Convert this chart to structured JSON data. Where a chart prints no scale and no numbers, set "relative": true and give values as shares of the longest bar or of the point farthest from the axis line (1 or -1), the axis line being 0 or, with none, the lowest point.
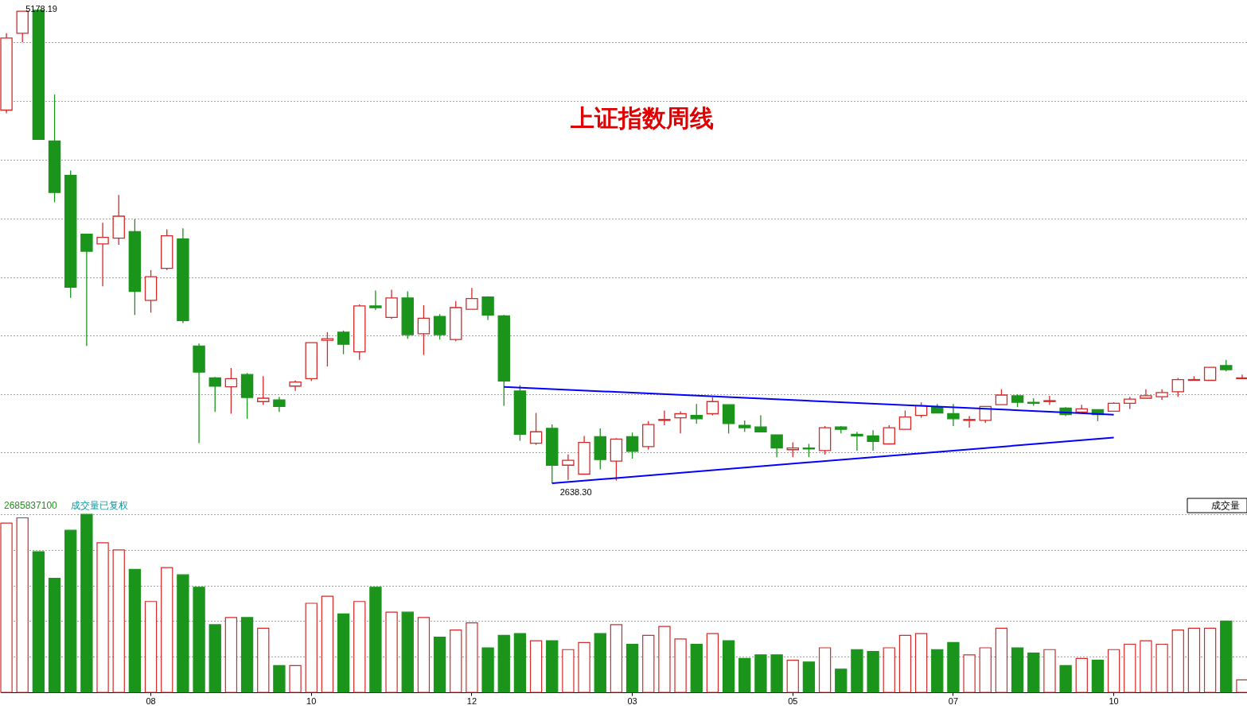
{
  "chart_data": [
    {
      "type": "candlestick",
      "title": "上证指数周线",
      "categories": [
        null,
        null,
        null,
        null,
        null,
        null,
        null,
        null,
        null,
        "08",
        null,
        null,
        null,
        null,
        null,
        null,
        null,
        null,
        null,
        "10",
        null,
        null,
        null,
        null,
        null,
        null,
        null,
        null,
        null,
        "12",
        null,
        null,
        null,
        null,
        null,
        null,
        null,
        null,
        null,
        "03",
        null,
        null,
        null,
        null,
        null,
        null,
        null,
        null,
        null,
        "05",
        null,
        null,
        null,
        null,
        null,
        null,
        null,
        null,
        null,
        "07",
        null,
        null,
        null,
        null,
        null,
        null,
        null,
        null,
        null,
        "10",
        null,
        null,
        null,
        null,
        null,
        null,
        null,
        null
      ],
      "ohlc": [
        [
          4639,
          5051,
          4622,
          5025
        ],
        [
          5051,
          5169,
          5003,
          5169
        ],
        [
          5174,
          5178.19,
          4482,
          4482
        ],
        [
          4473,
          4723,
          4145,
          4197
        ],
        [
          4289,
          4315,
          3632,
          3689
        ],
        [
          3974,
          3974,
          3374,
          3882
        ],
        [
          3921,
          4035,
          3694,
          3957
        ],
        [
          3952,
          4184,
          3917,
          4070
        ],
        [
          3987,
          4053,
          3540,
          3667
        ],
        [
          3619,
          3781,
          3553,
          3746
        ],
        [
          3790,
          4000,
          3781,
          3965
        ],
        [
          3948,
          4005,
          3497,
          3510
        ],
        [
          3374,
          3387,
          2853,
          3234
        ],
        [
          3203,
          3208,
          3020,
          3159
        ],
        [
          3155,
          3256,
          3011,
          3199
        ],
        [
          3221,
          3229,
          2984,
          3098
        ],
        [
          3076,
          3212,
          3059,
          3094
        ],
        [
          3085,
          3102,
          3020,
          3050
        ],
        [
          3159,
          3190,
          3133,
          3181
        ],
        [
          3199,
          3392,
          3186,
          3392
        ],
        [
          3405,
          3448,
          3264,
          3413
        ],
        [
          3448,
          3457,
          3330,
          3383
        ],
        [
          3343,
          3597,
          3300,
          3589
        ],
        [
          3589,
          3672,
          3567,
          3580
        ],
        [
          3527,
          3676,
          3519,
          3632
        ],
        [
          3632,
          3667,
          3413,
          3435
        ],
        [
          3440,
          3593,
          3326,
          3523
        ],
        [
          3532,
          3545,
          3409,
          3435
        ],
        [
          3409,
          3615,
          3400,
          3580
        ],
        [
          3571,
          3685,
          3571,
          3628
        ],
        [
          3637,
          3641,
          3514,
          3540
        ],
        [
          3536,
          3540,
          3054,
          3186
        ],
        [
          3133,
          3164,
          2866,
          2901
        ],
        [
          2853,
          3015,
          2844,
          2914
        ],
        [
          2932,
          2953,
          2638.3,
          2735
        ],
        [
          2735,
          2792,
          2656,
          2761
        ],
        [
          2687,
          2892,
          2687,
          2857
        ],
        [
          2888,
          2932,
          2713,
          2765
        ],
        [
          2757,
          2879,
          2652,
          2875
        ],
        [
          2888,
          2910,
          2770,
          2809
        ],
        [
          2835,
          2971,
          2818,
          2953
        ],
        [
          2975,
          3028,
          2949,
          2980
        ],
        [
          2989,
          3024,
          2905,
          3011
        ],
        [
          3002,
          3063,
          2958,
          2984
        ],
        [
          3011,
          3098,
          3002,
          3076
        ],
        [
          3059,
          3059,
          2905,
          2958
        ],
        [
          2949,
          2975,
          2914,
          2936
        ],
        [
          2940,
          3002,
          2914,
          2914
        ],
        [
          2897,
          2897,
          2778,
          2827
        ],
        [
          2818,
          2857,
          2778,
          2827
        ],
        [
          2827,
          2849,
          2778,
          2822
        ],
        [
          2813,
          2945,
          2792,
          2936
        ],
        [
          2940,
          2945,
          2905,
          2927
        ],
        [
          2901,
          2914,
          2813,
          2892
        ],
        [
          2892,
          2923,
          2813,
          2862
        ],
        [
          2849,
          2949,
          2849,
          2936
        ],
        [
          2927,
          3028,
          2927,
          2993
        ],
        [
          3002,
          3072,
          2989,
          3054
        ],
        [
          3046,
          3063,
          3015,
          3015
        ],
        [
          3011,
          3063,
          2945,
          2984
        ],
        [
          2975,
          2998,
          2936,
          2980
        ],
        [
          2975,
          3050,
          2962,
          3050
        ],
        [
          3059,
          3142,
          3059,
          3111
        ],
        [
          3107,
          3116,
          3046,
          3072
        ],
        [
          3072,
          3094,
          3054,
          3067
        ],
        [
          3076,
          3107,
          3059,
          3081
        ],
        [
          3041,
          3046,
          2998,
          3006
        ],
        [
          3020,
          3059,
          3015,
          3037
        ],
        [
          3033,
          3033,
          2971,
          3006
        ],
        [
          3024,
          3072,
          3024,
          3067
        ],
        [
          3067,
          3102,
          3037,
          3089
        ],
        [
          3094,
          3142,
          3094,
          3107
        ],
        [
          3102,
          3142,
          3085,
          3124
        ],
        [
          3129,
          3203,
          3102,
          3194
        ],
        [
          3190,
          3212,
          3190,
          3194
        ],
        [
          3190,
          3260,
          3190,
          3260
        ],
        [
          3269,
          3300,
          3238,
          3247
        ],
        [
          3199,
          3221,
          3199,
          3203
        ]
      ],
      "colors": [
        "#d42a2a",
        "#d42a2a",
        "#1b941b",
        "#1b941b",
        "#1b941b",
        "#1b941b",
        "#d42a2a",
        "#d42a2a",
        "#1b941b",
        "#d42a2a",
        "#d42a2a",
        "#1b941b",
        "#1b941b",
        "#1b941b",
        "#d42a2a",
        "#1b941b",
        "#d42a2a",
        "#1b941b",
        "#d42a2a",
        "#d42a2a",
        "#d42a2a",
        "#1b941b",
        "#d42a2a",
        "#1b941b",
        "#d42a2a",
        "#1b941b",
        "#d42a2a",
        "#1b941b",
        "#d42a2a",
        "#d42a2a",
        "#1b941b",
        "#1b941b",
        "#1b941b",
        "#d42a2a",
        "#1b941b",
        "#d42a2a",
        "#d42a2a",
        "#1b941b",
        "#d42a2a",
        "#1b941b",
        "#d42a2a",
        "#d42a2a",
        "#d42a2a",
        "#1b941b",
        "#d42a2a",
        "#1b941b",
        "#1b941b",
        "#1b941b",
        "#1b941b",
        "#d42a2a",
        "#1b941b",
        "#d42a2a",
        "#1b941b",
        "#1b941b",
        "#1b941b",
        "#d42a2a",
        "#d42a2a",
        "#d42a2a",
        "#1b941b",
        "#1b941b",
        "#d42a2a",
        "#d42a2a",
        "#d42a2a",
        "#1b941b",
        "#1b941b",
        "#d42a2a",
        "#1b941b",
        "#d42a2a",
        "#1b941b",
        "#d42a2a",
        "#d42a2a",
        "#d42a2a",
        "#d42a2a",
        "#d42a2a",
        "#d42a2a",
        "#d42a2a",
        "#1b941b",
        "#d42a2a"
      ],
      "yticks": [
        {
          "value": 2804,
          "label": null
        },
        {
          "value": 3116,
          "label": null
        },
        {
          "value": 3431,
          "label": null
        },
        {
          "value": 3742,
          "label": null
        },
        {
          "value": 4057,
          "label": null
        },
        {
          "value": 4372,
          "label": null
        },
        {
          "value": 4688,
          "label": null
        },
        {
          "value": 5003,
          "label": null
        }
      ],
      "grid": "y",
      "tick_labels": false,
      "annotations": [
        "5178.19",
        {
          "text": "2638.30",
          "y": 2638.3
        }
      ],
      "series": [
        {
          "type": "line",
          "color": "#0000ff",
          "values": [
            null,
            null,
            null,
            null,
            null,
            null,
            null,
            null,
            null,
            null,
            null,
            null,
            null,
            null,
            null,
            null,
            null,
            null,
            null,
            null,
            null,
            null,
            null,
            null,
            null,
            null,
            null,
            null,
            null,
            null,
            null,
            3155,
            null,
            null,
            null,
            null,
            null,
            null,
            null,
            null,
            null,
            null,
            null,
            null,
            null,
            null,
            null,
            null,
            null,
            null,
            null,
            null,
            null,
            null,
            null,
            null,
            null,
            null,
            null,
            null,
            null,
            null,
            null,
            null,
            null,
            null,
            null,
            null,
            null,
            3006,
            null,
            null,
            null,
            null,
            null,
            null,
            null,
            null
          ]
        },
        {
          "type": "line",
          "color": "#0000ff",
          "values": [
            null,
            null,
            null,
            null,
            null,
            null,
            null,
            null,
            null,
            null,
            null,
            null,
            null,
            null,
            null,
            null,
            null,
            null,
            null,
            null,
            null,
            null,
            null,
            null,
            null,
            null,
            null,
            null,
            null,
            null,
            null,
            null,
            null,
            null,
            2638,
            null,
            null,
            null,
            null,
            null,
            null,
            null,
            null,
            null,
            null,
            null,
            null,
            null,
            null,
            null,
            null,
            null,
            null,
            null,
            null,
            null,
            null,
            null,
            null,
            null,
            null,
            null,
            null,
            null,
            null,
            null,
            null,
            null,
            null,
            2883,
            null,
            null,
            null,
            null,
            null,
            null,
            null,
            null
          ]
        }
      ]
    },
    {
      "type": "bar",
      "relative": true,
      "grid": "y",
      "tick_labels": "x",
      "categories": [
        null,
        null,
        null,
        null,
        null,
        null,
        null,
        null,
        null,
        "08",
        null,
        null,
        null,
        null,
        null,
        null,
        null,
        null,
        null,
        "10",
        null,
        null,
        null,
        null,
        null,
        null,
        null,
        null,
        null,
        "12",
        null,
        null,
        null,
        null,
        null,
        null,
        null,
        null,
        null,
        "03",
        null,
        null,
        null,
        null,
        null,
        null,
        null,
        null,
        null,
        "05",
        null,
        null,
        null,
        null,
        null,
        null,
        null,
        null,
        null,
        "07",
        null,
        null,
        null,
        null,
        null,
        null,
        null,
        null,
        null,
        "10",
        null,
        null,
        null,
        null,
        null,
        null,
        null,
        null
      ],
      "values": [
        0.95,
        0.98,
        0.79,
        0.64,
        0.91,
        1,
        0.84,
        0.8,
        0.69,
        0.51,
        0.7,
        0.66,
        0.59,
        0.38,
        0.42,
        0.42,
        0.36,
        0.15,
        0.15,
        0.5,
        0.54,
        0.44,
        0.51,
        0.59,
        0.45,
        0.45,
        0.42,
        0.31,
        0.35,
        0.39,
        0.25,
        0.32,
        0.33,
        0.29,
        0.29,
        0.24,
        0.28,
        0.33,
        0.38,
        0.27,
        0.32,
        0.37,
        0.3,
        0.27,
        0.33,
        0.29,
        0.19,
        0.21,
        0.21,
        0.18,
        0.17,
        0.25,
        0.13,
        0.24,
        0.23,
        0.25,
        0.32,
        0.33,
        0.24,
        0.28,
        0.21,
        0.25,
        0.36,
        0.25,
        0.22,
        0.24,
        0.15,
        0.19,
        0.18,
        0.24,
        0.27,
        0.29,
        0.27,
        0.35,
        0.36,
        0.36,
        0.4,
        0.07
      ],
      "colors": [
        "#d42a2a",
        "#d42a2a",
        "#1b941b",
        "#1b941b",
        "#1b941b",
        "#1b941b",
        "#d42a2a",
        "#d42a2a",
        "#1b941b",
        "#d42a2a",
        "#d42a2a",
        "#1b941b",
        "#1b941b",
        "#1b941b",
        "#d42a2a",
        "#1b941b",
        "#d42a2a",
        "#1b941b",
        "#d42a2a",
        "#d42a2a",
        "#d42a2a",
        "#1b941b",
        "#d42a2a",
        "#1b941b",
        "#d42a2a",
        "#1b941b",
        "#d42a2a",
        "#1b941b",
        "#d42a2a",
        "#d42a2a",
        "#1b941b",
        "#1b941b",
        "#1b941b",
        "#d42a2a",
        "#1b941b",
        "#d42a2a",
        "#d42a2a",
        "#1b941b",
        "#d42a2a",
        "#1b941b",
        "#d42a2a",
        "#d42a2a",
        "#d42a2a",
        "#1b941b",
        "#d42a2a",
        "#1b941b",
        "#1b941b",
        "#1b941b",
        "#1b941b",
        "#d42a2a",
        "#1b941b",
        "#d42a2a",
        "#1b941b",
        "#1b941b",
        "#1b941b",
        "#d42a2a",
        "#d42a2a",
        "#d42a2a",
        "#1b941b",
        "#1b941b",
        "#d42a2a",
        "#d42a2a",
        "#d42a2a",
        "#1b941b",
        "#1b941b",
        "#d42a2a",
        "#1b941b",
        "#d42a2a",
        "#1b941b",
        "#d42a2a",
        "#d42a2a",
        "#d42a2a",
        "#d42a2a",
        "#d42a2a",
        "#d42a2a",
        "#d42a2a",
        "#1b941b",
        "#d42a2a"
      ],
      "annotations": [
        "2685837100",
        "成交量已复权",
        "成交量"
      ]
    }
  ]
}
